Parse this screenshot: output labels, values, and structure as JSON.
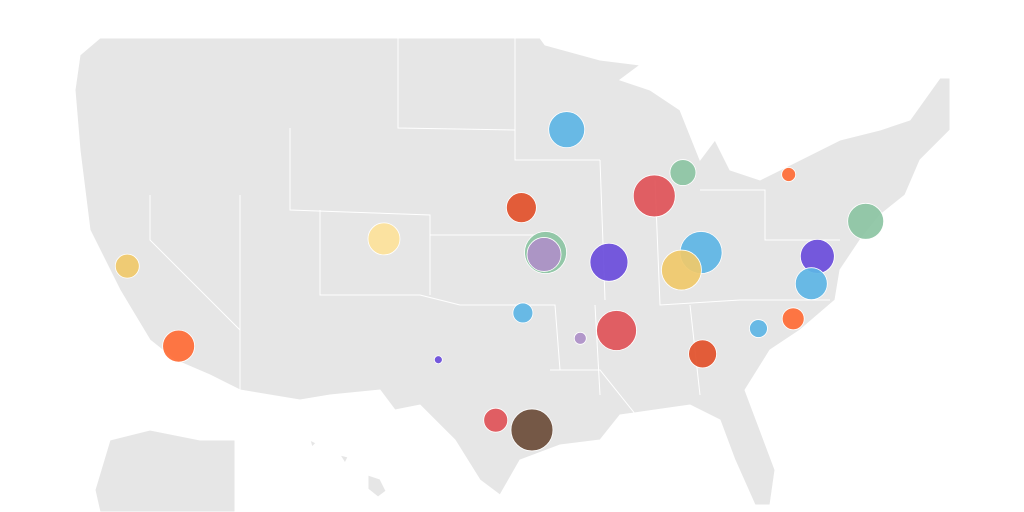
{
  "map": {
    "points": [
      {
        "lon": -92.1,
        "lat": 44.3,
        "size": 18,
        "color": "#5db5e5"
      },
      {
        "lon": -84.4,
        "lat": 42.1,
        "size": 13,
        "color": "#8cc4a3"
      },
      {
        "lon": -77.4,
        "lat": 42.0,
        "size": 7,
        "color": "#ff6b35"
      },
      {
        "lon": -86.3,
        "lat": 40.9,
        "size": 21,
        "color": "#e05258"
      },
      {
        "lon": -95.1,
        "lat": 40.3,
        "size": 15,
        "color": "#e2502a"
      },
      {
        "lon": -72.3,
        "lat": 39.6,
        "size": 18,
        "color": "#8cc4a3"
      },
      {
        "lon": -104.2,
        "lat": 38.7,
        "size": 16,
        "color": "#fde29a"
      },
      {
        "lon": -93.5,
        "lat": 38.0,
        "size": 21,
        "color": "#8cc4a3"
      },
      {
        "lon": -93.6,
        "lat": 37.9,
        "size": 17,
        "color": "#ae90c8"
      },
      {
        "lon": -89.3,
        "lat": 37.5,
        "size": 19,
        "color": "#6a4cdb"
      },
      {
        "lon": -83.2,
        "lat": 38.0,
        "size": 21,
        "color": "#5db5e5"
      },
      {
        "lon": -84.5,
        "lat": 37.1,
        "size": 20,
        "color": "#f0c96a"
      },
      {
        "lon": -75.5,
        "lat": 37.8,
        "size": 17,
        "color": "#6a4cdb"
      },
      {
        "lon": -75.9,
        "lat": 36.4,
        "size": 16,
        "color": "#5db5e5"
      },
      {
        "lon": -121.2,
        "lat": 37.3,
        "size": 12,
        "color": "#f0c96a"
      },
      {
        "lon": -95.0,
        "lat": 34.9,
        "size": 10,
        "color": "#5db5e5"
      },
      {
        "lon": -91.2,
        "lat": 33.6,
        "size": 6,
        "color": "#ae90c8"
      },
      {
        "lon": -88.8,
        "lat": 34.0,
        "size": 20,
        "color": "#e05258"
      },
      {
        "lon": -79.4,
        "lat": 34.1,
        "size": 9,
        "color": "#5db5e5"
      },
      {
        "lon": -77.1,
        "lat": 34.6,
        "size": 11,
        "color": "#ff6b35"
      },
      {
        "lon": -117.8,
        "lat": 33.2,
        "size": 16,
        "color": "#ff6b35"
      },
      {
        "lon": -100.6,
        "lat": 32.5,
        "size": 4,
        "color": "#6a4cdb"
      },
      {
        "lon": -83.1,
        "lat": 32.8,
        "size": 14,
        "color": "#e2502a"
      },
      {
        "lon": -96.8,
        "lat": 29.4,
        "size": 12,
        "color": "#e05258"
      },
      {
        "lon": -94.4,
        "lat": 28.9,
        "size": 21,
        "color": "#6b4c38"
      }
    ]
  }
}
